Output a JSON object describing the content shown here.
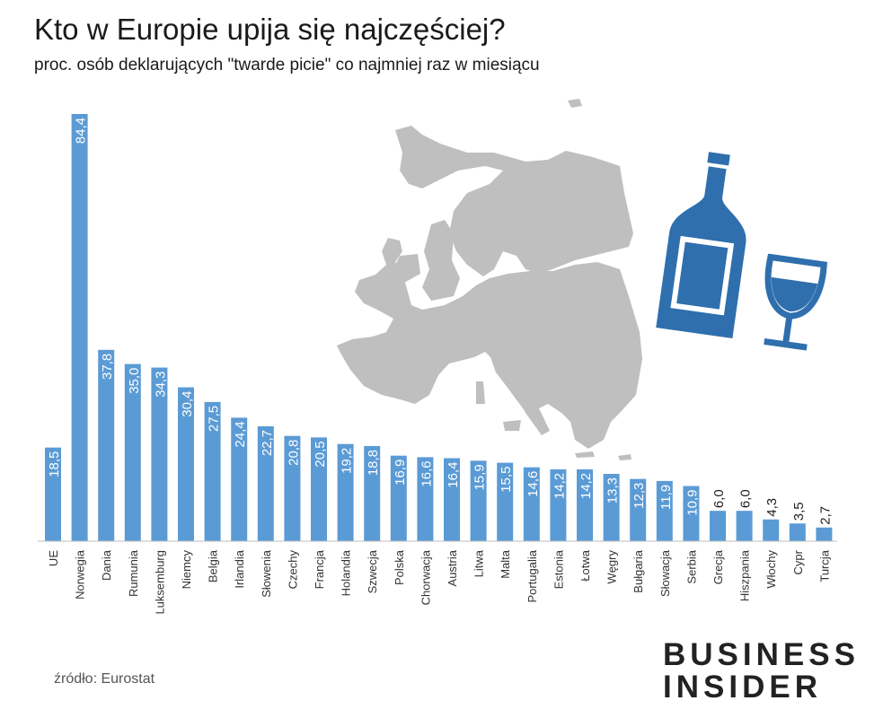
{
  "chart_data": {
    "type": "bar",
    "title": "Kto w Europie upija się najczęściej?",
    "subtitle": "proc. osób deklarujących \"twarde picie\" co najmniej raz w miesiącu",
    "categories": [
      "UE",
      "Norwegia",
      "Dania",
      "Rumunia",
      "Luksemburg",
      "Niemcy",
      "Belgia",
      "Irlandia",
      "Słowenia",
      "Czechy",
      "Francja",
      "Holandia",
      "Szwecja",
      "Polska",
      "Chorwacja",
      "Austria",
      "Litwa",
      "Malta",
      "Portugalia",
      "Estonia",
      "Łotwa",
      "Węgry",
      "Bułgaria",
      "Słowacja",
      "Serbia",
      "Grecja",
      "Hiszpania",
      "Włochy",
      "Cypr",
      "Turcja"
    ],
    "values": [
      18.5,
      84.4,
      37.8,
      35.0,
      34.3,
      30.4,
      27.5,
      24.4,
      22.7,
      20.8,
      20.5,
      19.2,
      18.8,
      16.9,
      16.6,
      16.4,
      15.9,
      15.5,
      14.6,
      14.2,
      14.2,
      13.3,
      12.3,
      11.9,
      10.9,
      6.0,
      6.0,
      4.3,
      3.5,
      2.7
    ],
    "value_labels": [
      "18,5",
      "84,4",
      "37,8",
      "35,0",
      "34,3",
      "30,4",
      "27,5",
      "24,4",
      "22,7",
      "20,8",
      "20,5",
      "19,2",
      "18,8",
      "16,9",
      "16,6",
      "16,4",
      "15,9",
      "15,5",
      "14,6",
      "14,2",
      "14,2",
      "13,3",
      "12,3",
      "11,9",
      "10,9",
      "6,0",
      "6,0",
      "4,3",
      "3,5",
      "2,7"
    ],
    "ylim": [
      0,
      84.4
    ],
    "grid": false,
    "legend": "none",
    "bar_color": "#5b9bd5"
  },
  "source": "źródło: Eurostat",
  "logo": {
    "line1": "BUSINESS",
    "line2": "INSIDER"
  },
  "illustration": {
    "map": "europe-map",
    "map_color": "#bfbfbf",
    "icons": [
      "wine-bottle-icon",
      "wine-glass-icon"
    ],
    "icon_color": "#2f6fad"
  }
}
